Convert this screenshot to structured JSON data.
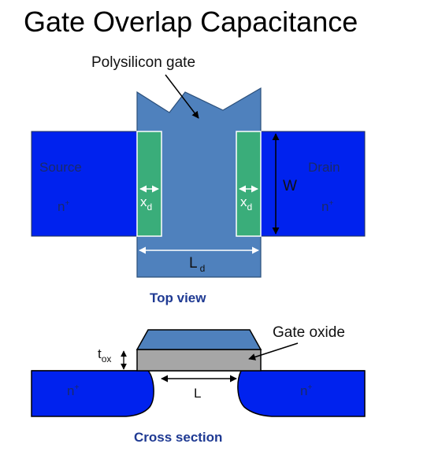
{
  "title": "Gate Overlap Capacitance",
  "top_view": {
    "gate_label": "Polysilicon gate",
    "source_label": "Source",
    "drain_label": "Drain",
    "n_plus": "n",
    "n_plus_sup": "+",
    "xd_main": "x",
    "xd_sub": "d",
    "w_label": "W",
    "ld_main": "L",
    "ld_sub": "d",
    "caption": "Top view"
  },
  "cross_section": {
    "oxide_label": "Gate oxide",
    "tox_main": "t",
    "tox_sub": "ox",
    "l_label": "L",
    "n_plus": "n",
    "n_plus_sup": "+",
    "caption": "Cross section"
  },
  "colors": {
    "substrate_blue": "#0022ee",
    "gate_blue": "#4f81bd",
    "overlap_green": "#3aad7a",
    "oxide_gray": "#a6a6a6",
    "caption_navy": "#1f3a93",
    "region_label": "#1a2a6a"
  }
}
